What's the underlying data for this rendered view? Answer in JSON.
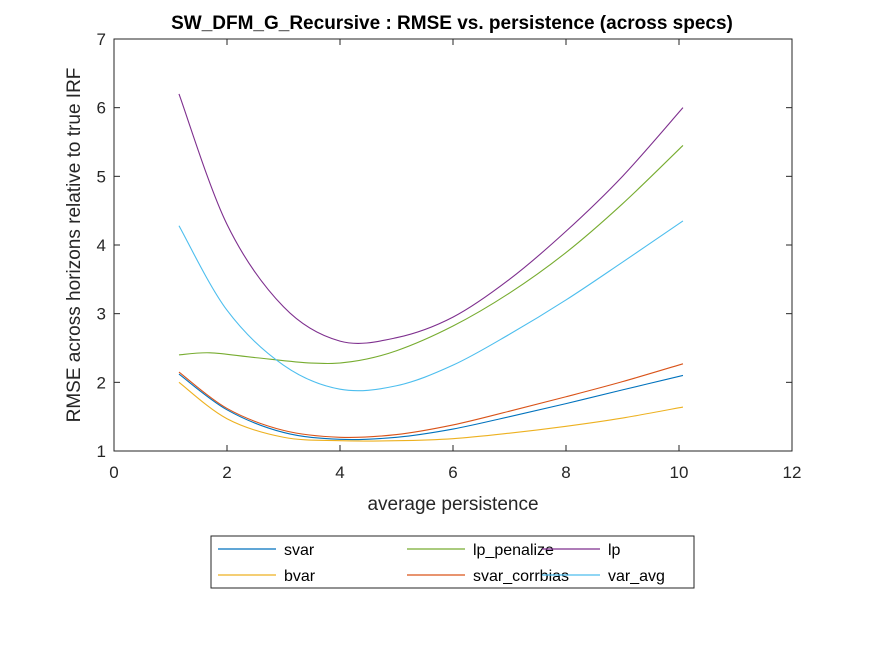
{
  "chart_data": {
    "type": "line",
    "title": "SW_DFM_G_Recursive : RMSE vs. persistence (across specs)",
    "xlabel": "average persistence",
    "ylabel": "RMSE across horizons relative to true IRF",
    "xlim": [
      0,
      12
    ],
    "ylim": [
      1,
      7
    ],
    "xticks": [
      "0",
      "2",
      "4",
      "6",
      "8",
      "10",
      "12"
    ],
    "yticks": [
      "1",
      "2",
      "3",
      "4",
      "5",
      "6",
      "7"
    ],
    "grid": false,
    "legend_position": "bottom-outside",
    "legend_columns": 3,
    "series": [
      {
        "name": "svar",
        "color": "#0072BD",
        "x": [
          1.15,
          2,
          3,
          4,
          5,
          6,
          7,
          8,
          9,
          10.07
        ],
        "y": [
          2.12,
          1.6,
          1.27,
          1.17,
          1.2,
          1.32,
          1.5,
          1.69,
          1.89,
          2.1
        ]
      },
      {
        "name": "bvar",
        "color": "#EDB120",
        "x": [
          1.15,
          2,
          3,
          4,
          5,
          6,
          7,
          8,
          9,
          10.07
        ],
        "y": [
          2.0,
          1.47,
          1.2,
          1.15,
          1.15,
          1.18,
          1.26,
          1.36,
          1.48,
          1.64
        ]
      },
      {
        "name": "lp_penalize",
        "color": "#77AC30",
        "x": [
          1.15,
          1.7,
          2.5,
          3.5,
          4.2,
          5,
          6,
          7,
          8,
          9,
          10.07
        ],
        "y": [
          2.4,
          2.43,
          2.36,
          2.28,
          2.3,
          2.46,
          2.82,
          3.3,
          3.89,
          4.6,
          5.45
        ]
      },
      {
        "name": "svar_corrbias",
        "color": "#D95319",
        "x": [
          1.15,
          2,
          3,
          4,
          5,
          6,
          7,
          8,
          9,
          10.07
        ],
        "y": [
          2.15,
          1.62,
          1.3,
          1.2,
          1.24,
          1.38,
          1.58,
          1.79,
          2.01,
          2.27
        ]
      },
      {
        "name": "lp",
        "color": "#7E2F8E",
        "x": [
          1.15,
          2,
          3,
          4,
          5,
          6,
          7,
          8,
          9,
          10.07
        ],
        "y": [
          6.2,
          4.3,
          3.1,
          2.6,
          2.65,
          2.95,
          3.5,
          4.2,
          5.0,
          6.0
        ]
      },
      {
        "name": "var_avg",
        "color": "#4DBEEE",
        "x": [
          1.15,
          2,
          3,
          4,
          5,
          6,
          7,
          8,
          9,
          10.07
        ],
        "y": [
          4.28,
          3.05,
          2.25,
          1.9,
          1.95,
          2.25,
          2.7,
          3.2,
          3.75,
          4.35
        ]
      }
    ]
  }
}
